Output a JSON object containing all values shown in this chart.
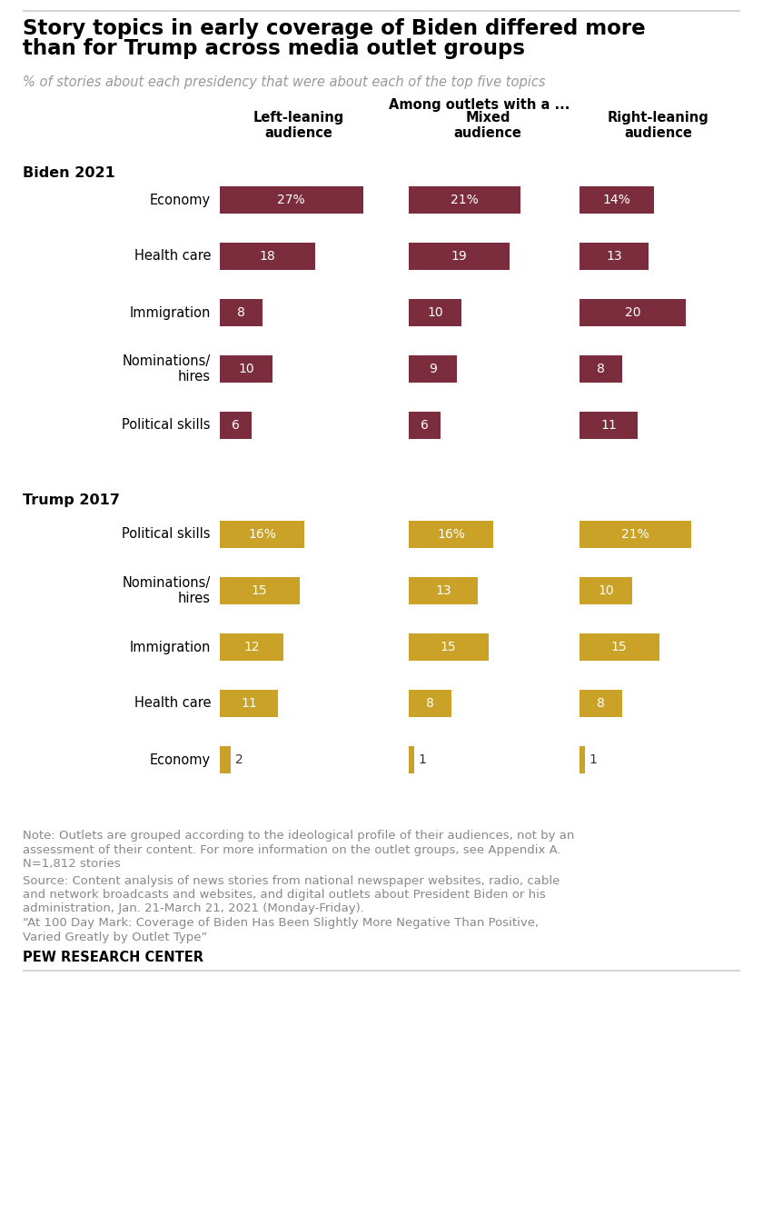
{
  "title_line1": "Story topics in early coverage of Biden differed more",
  "title_line2": "than for Trump across media outlet groups",
  "subtitle": "% of stories about each presidency that were about each of the top five topics",
  "column_header": "Among outlets with a ...",
  "columns": [
    "Left-leaning\naudience",
    "Mixed\naudience",
    "Right-leaning\naudience"
  ],
  "biden_label": "Biden 2021",
  "biden_color": "#7b2d3e",
  "biden_topics": [
    "Economy",
    "Health care",
    "Immigration",
    "Nominations/\nhires",
    "Political skills"
  ],
  "biden_left": [
    27,
    18,
    8,
    10,
    6
  ],
  "biden_mixed": [
    21,
    19,
    10,
    9,
    6
  ],
  "biden_right": [
    14,
    13,
    20,
    8,
    11
  ],
  "biden_left_pct": [
    "27%",
    "18",
    "8",
    "10",
    "6"
  ],
  "biden_mixed_pct": [
    "21%",
    "19",
    "10",
    "9",
    "6"
  ],
  "biden_right_pct": [
    "14%",
    "13",
    "20",
    "8",
    "11"
  ],
  "trump_label": "Trump 2017",
  "trump_color": "#c9a227",
  "trump_topics": [
    "Political skills",
    "Nominations/\nhires",
    "Immigration",
    "Health care",
    "Economy"
  ],
  "trump_left": [
    16,
    15,
    12,
    11,
    2
  ],
  "trump_mixed": [
    16,
    13,
    15,
    8,
    1
  ],
  "trump_right": [
    21,
    10,
    15,
    8,
    1
  ],
  "trump_left_pct": [
    "16%",
    "15",
    "12",
    "11",
    "2"
  ],
  "trump_mixed_pct": [
    "16%",
    "13",
    "15",
    "8",
    "1"
  ],
  "trump_right_pct": [
    "21%",
    "10",
    "15",
    "8",
    "1"
  ],
  "max_val": 30,
  "note_line1": "Note: Outlets are grouped according to the ideological profile of their audiences, not by an",
  "note_line2": "assessment of their content. For more information on the outlet groups, see Appendix A.",
  "note_line3": "N=1,812 stories",
  "note_line4": "Source: Content analysis of news stories from national newspaper websites, radio, cable",
  "note_line5": "and network broadcasts and websites, and digital outlets about President Biden or his",
  "note_line6": "administration, Jan. 21-March 21, 2021 (Monday-Friday).",
  "note_line7": "“At 100 Day Mark: Coverage of Biden Has Been Slightly More Negative Than Positive,",
  "note_line8": "Varied Greatly by Outlet Type”",
  "pew_text": "PEW RESEARCH CENTER",
  "background_color": "#ffffff",
  "note_color": "#888888"
}
